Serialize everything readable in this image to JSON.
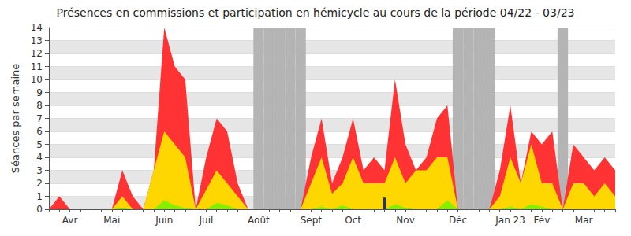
{
  "chart_data": {
    "type": "area",
    "title": "Présences en commissions et participation en hémicycle au cours de la période 04/22 - 03/23",
    "y_label": "Séances par semaine",
    "categories": [
      null,
      null,
      "Avr",
      null,
      null,
      null,
      "Mai",
      null,
      null,
      null,
      null,
      "Juin",
      null,
      null,
      null,
      "Juil",
      null,
      null,
      null,
      null,
      "Août",
      null,
      null,
      null,
      null,
      "Sept",
      null,
      null,
      null,
      "Oct",
      null,
      null,
      null,
      null,
      "Nov",
      null,
      null,
      null,
      null,
      "Déc",
      null,
      null,
      null,
      null,
      "Jan 23",
      null,
      null,
      "Fév",
      null,
      null,
      null,
      "Mar",
      null,
      null,
      null
    ],
    "series": [
      {
        "type": "area",
        "color": "#ff3333",
        "values": [
          0,
          1,
          0,
          0,
          0,
          0,
          0,
          3,
          1,
          0,
          3,
          14,
          11,
          10,
          0,
          4,
          7,
          6,
          2,
          0,
          0,
          0,
          0,
          0,
          0,
          4,
          7,
          2,
          4,
          7,
          3,
          4,
          3,
          10,
          5,
          3,
          4,
          7,
          8,
          0,
          0,
          0,
          0,
          3,
          8,
          2,
          6,
          5,
          6,
          0,
          5,
          4,
          3,
          4,
          3
        ]
      },
      {
        "type": "area",
        "color": "#ffd700",
        "values": [
          0,
          0,
          0,
          0,
          0,
          0,
          0,
          1,
          0,
          0,
          3,
          6,
          5,
          4,
          0,
          1.5,
          3,
          2,
          1,
          0,
          0,
          0,
          0,
          0,
          0,
          2,
          4,
          1.2,
          2,
          4,
          2,
          2,
          2,
          4,
          2,
          3,
          3,
          4,
          4,
          0,
          0,
          0,
          0,
          1,
          4,
          2,
          5,
          2,
          2,
          0,
          2,
          2,
          1,
          2,
          1
        ]
      },
      {
        "type": "area",
        "color": "#88ee00",
        "values": [
          0,
          0,
          0,
          0,
          0,
          0,
          0,
          0.1,
          0,
          0,
          0,
          0.7,
          0.3,
          0.1,
          0,
          0,
          0.5,
          0.3,
          0,
          0,
          0,
          0,
          0,
          0,
          0,
          0,
          0.2,
          0,
          0.3,
          0,
          0,
          0,
          0,
          0.4,
          0.1,
          0,
          0,
          0,
          0.7,
          0,
          0,
          0,
          0,
          0,
          0.2,
          0,
          0.4,
          0.2,
          0,
          0,
          0,
          0,
          0,
          0,
          0
        ]
      },
      {
        "type": "bar",
        "color": "#1f2f9f",
        "values": [
          0,
          0,
          0,
          0,
          0,
          0,
          0,
          0,
          0,
          0,
          0,
          0,
          0,
          0,
          0,
          0,
          0,
          0,
          0,
          0,
          0,
          0,
          0,
          0,
          0,
          0,
          0,
          0,
          0,
          0,
          0,
          0,
          0.9,
          0,
          0,
          0,
          0,
          0,
          0,
          0,
          0,
          0,
          0,
          0,
          0,
          0,
          0,
          0,
          0,
          0,
          0,
          0,
          0,
          0,
          0
        ]
      }
    ],
    "shaded": {
      "color": "#b4b4b4",
      "weeks": [
        20,
        21,
        22,
        23,
        24,
        39,
        40,
        41,
        42,
        49
      ]
    },
    "stacked": false,
    "ylim": [
      0,
      14
    ],
    "yticks": [
      0,
      1,
      2,
      3,
      4,
      5,
      6,
      7,
      8,
      9,
      10,
      11,
      12,
      13,
      14
    ],
    "grid": true
  }
}
